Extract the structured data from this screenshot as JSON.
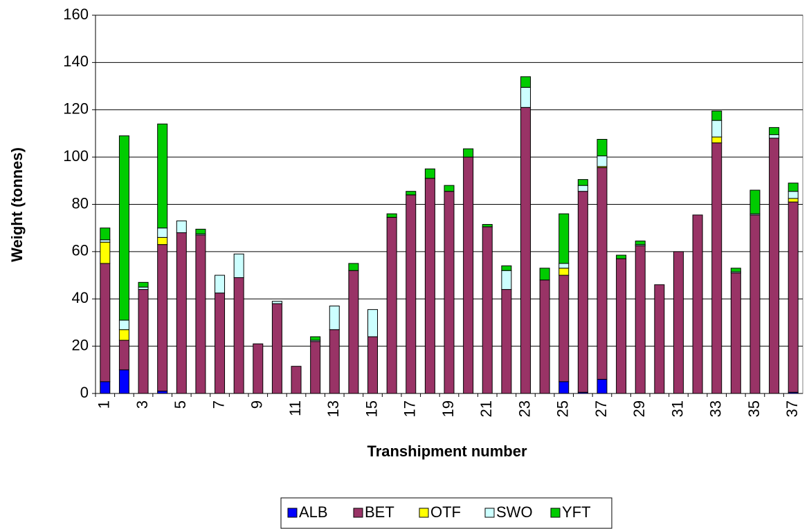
{
  "chart_data": {
    "type": "stacked_bar",
    "x_label": "Transhipment number",
    "y_label": "Weight (tonnes)",
    "categories": [
      "1",
      null,
      "3",
      null,
      "5",
      null,
      "7",
      null,
      "9",
      null,
      "11",
      null,
      "13",
      null,
      "15",
      null,
      "17",
      null,
      "19",
      null,
      "21",
      null,
      "23",
      null,
      "25",
      null,
      "27",
      null,
      "29",
      null,
      "31",
      null,
      "33",
      null,
      "35",
      null,
      "37"
    ],
    "series": [
      {
        "name": "ALB",
        "color": "#0000ff",
        "values": [
          5,
          10,
          0,
          1,
          0,
          0,
          0,
          0,
          0,
          0,
          0,
          0,
          0,
          0,
          0,
          0,
          0,
          0,
          0,
          0,
          0,
          0,
          0,
          0,
          5,
          0.5,
          6,
          0,
          0,
          0,
          0,
          0,
          0,
          0,
          0,
          0,
          0.5
        ]
      },
      {
        "name": "BET",
        "color": "#993366",
        "values": [
          50,
          12.5,
          44,
          62,
          68,
          67,
          42.5,
          49,
          21,
          38,
          11.5,
          22,
          27,
          52,
          24,
          74.5,
          84,
          91,
          85.5,
          100,
          70.5,
          44,
          121,
          48,
          45,
          85,
          89.5,
          57,
          62.5,
          46,
          60,
          75.5,
          106,
          51,
          75.5,
          108,
          80.5
        ]
      },
      {
        "name": "OTF",
        "color": "#ffff00",
        "values": [
          9,
          4.5,
          0,
          3,
          0,
          0,
          0,
          0,
          0,
          0,
          0,
          0,
          0,
          0,
          0,
          0,
          0,
          0,
          0,
          0,
          0,
          0,
          0,
          0,
          3,
          0,
          0.5,
          0,
          0,
          0,
          0,
          0,
          2.5,
          0,
          0,
          0,
          1.5
        ]
      },
      {
        "name": "SWO",
        "color": "#ccffff",
        "values": [
          1,
          4,
          1,
          4,
          5,
          0.5,
          7.5,
          10,
          0,
          1,
          0,
          0.5,
          10,
          0,
          11.5,
          0,
          0,
          0,
          0,
          0,
          0,
          8,
          8.5,
          0,
          2,
          2.5,
          4.5,
          0,
          0.5,
          0,
          0,
          0,
          7,
          0.5,
          0.5,
          1.5,
          3
        ]
      },
      {
        "name": "YFT",
        "color": "#00cc00",
        "values": [
          5,
          78,
          2,
          44,
          0,
          2,
          0,
          0,
          0,
          0,
          0,
          1.5,
          0,
          3,
          0,
          1.5,
          1.5,
          4,
          2.5,
          3.5,
          1,
          2,
          4.5,
          5,
          21,
          2.5,
          7,
          1.5,
          1.5,
          0,
          0,
          0,
          4,
          1.5,
          10,
          3,
          3.5
        ]
      }
    ],
    "ylim": [
      0,
      160
    ],
    "yticks": [
      0,
      20,
      40,
      60,
      80,
      100,
      120,
      140,
      160
    ],
    "grid": true,
    "legend": "bottom"
  }
}
